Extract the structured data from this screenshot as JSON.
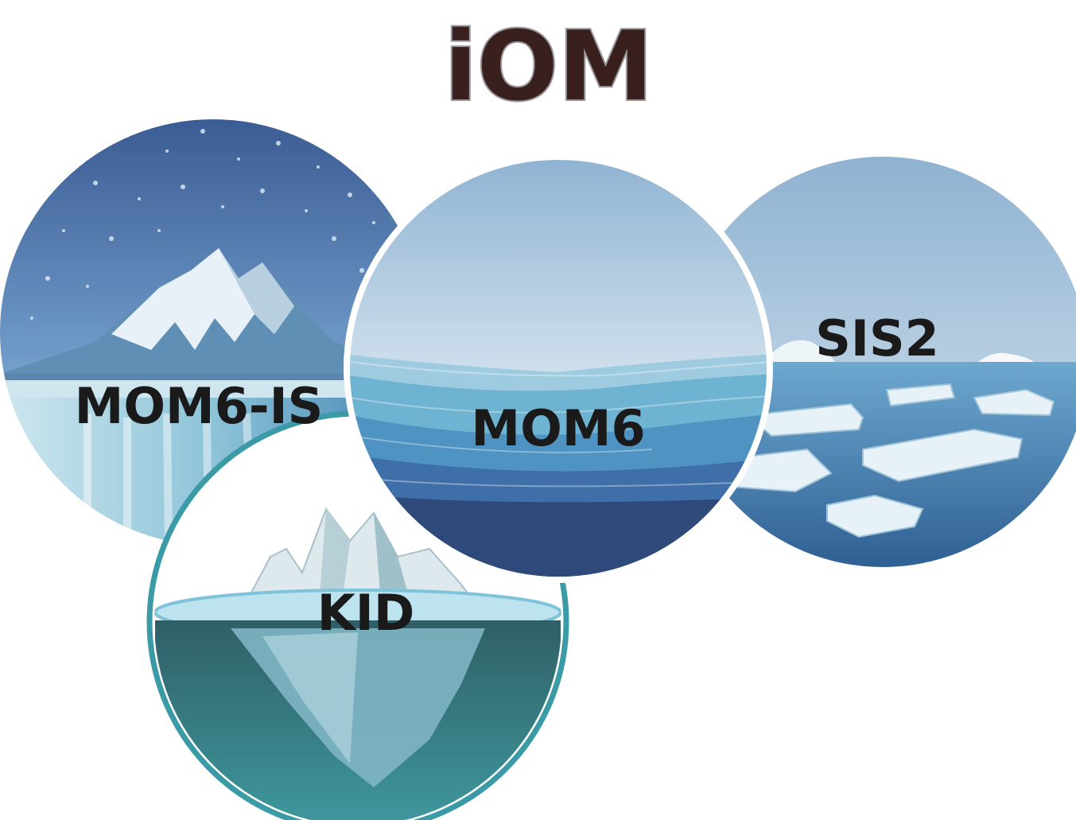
{
  "logo": {
    "title": "iOM",
    "title_fill": "#3a1f1f",
    "title_stroke": "#9a9a9a"
  },
  "components": [
    {
      "id": "mom6-is",
      "label": "MOM6-IS",
      "scene": "ice-shelf-mountain"
    },
    {
      "id": "mom6",
      "label": "MOM6",
      "scene": "ocean-waves"
    },
    {
      "id": "sis2",
      "label": "SIS2",
      "scene": "sea-ice-floes"
    },
    {
      "id": "kid",
      "label": "KID",
      "scene": "iceberg"
    }
  ],
  "colors": {
    "label": "#1a1a1a",
    "ocean_deep": "#2f4a7a",
    "ocean_mid": "#3f7fb0",
    "ice": "#e8f3f7",
    "ring": "#3a9aa5"
  }
}
